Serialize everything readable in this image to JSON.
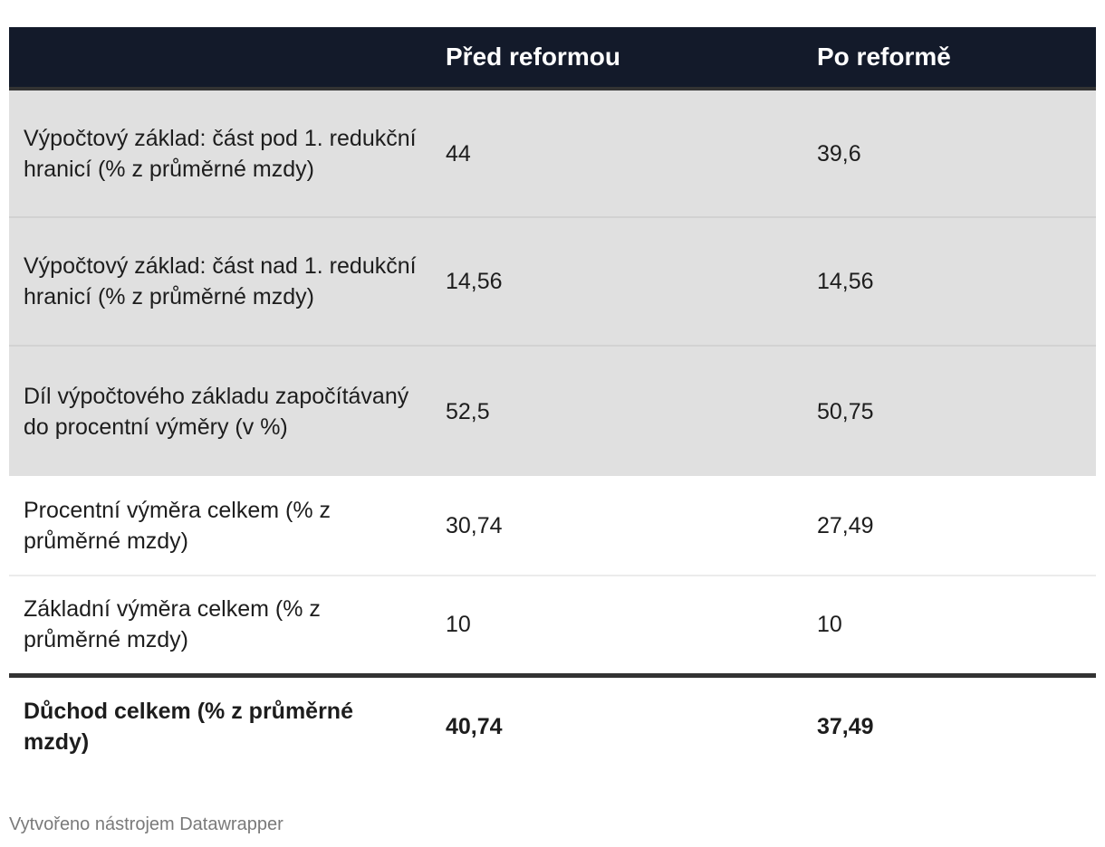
{
  "table": {
    "header": [
      "",
      "Před reformou",
      "Po reformě"
    ],
    "rows": [
      {
        "label": "Výpočtový základ: část pod 1. redukční hranicí (% z průměrné mzdy)",
        "before": "44",
        "after": "39,6"
      },
      {
        "label": "Výpočtový základ: část nad 1. redukční hranicí (% z průměrné mzdy)",
        "before": "14,56",
        "after": "14,56"
      },
      {
        "label": "Díl výpočtového základu započítávaný do procentní výměry (v %)",
        "before": "52,5",
        "after": "50,75"
      },
      {
        "label": "Procentní výměra celkem (% z průměrné mzdy)",
        "before": "30,74",
        "after": "27,49"
      },
      {
        "label": "Základní výměra celkem (% z průměrné mzdy)",
        "before": "10",
        "after": "10"
      }
    ],
    "total": {
      "label": "Důchod celkem (% z průměrné mzdy)",
      "before": "40,74",
      "after": "37,49"
    }
  },
  "chart_data": {
    "type": "table",
    "columns": [
      "",
      "Před reformou",
      "Po reformě"
    ],
    "rows": [
      [
        "Výpočtový základ: část pod 1. redukční hranicí (% z průměrné mzdy)",
        44,
        39.6
      ],
      [
        "Výpočtový základ: část nad 1. redukční hranicí (% z průměrné mzdy)",
        14.56,
        14.56
      ],
      [
        "Díl výpočtového základu započítávaný do procentní výměry (v %)",
        52.5,
        50.75
      ],
      [
        "Procentní výměra celkem (% z průměrné mzdy)",
        30.74,
        27.49
      ],
      [
        "Základní výměra celkem (% z průměrné mzdy)",
        10,
        10
      ],
      [
        "Důchod celkem (% z průměrné mzdy)",
        40.74,
        37.49
      ]
    ]
  },
  "footer": {
    "credit": "Vytvořeno nástrojem Datawrapper"
  }
}
